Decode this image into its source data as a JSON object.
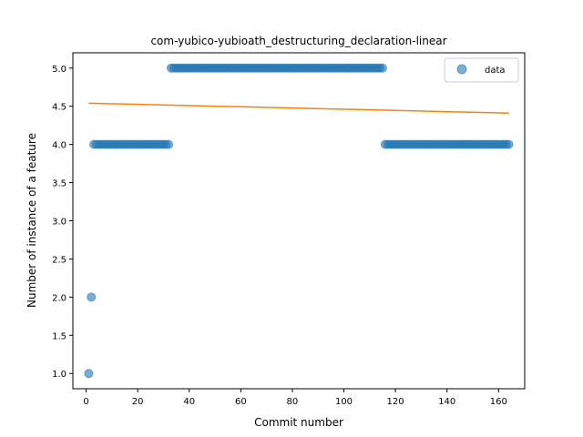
{
  "chart_data": {
    "type": "scatter",
    "title": "com-yubico-yubioath_destructuring_declaration-linear",
    "xlabel": "Commit number",
    "ylabel": "Number of instance of a feature",
    "xlim": [
      -5.15,
      170.15
    ],
    "ylim": [
      0.8,
      5.2
    ],
    "xticks": [
      0,
      20,
      40,
      60,
      80,
      100,
      120,
      140,
      160
    ],
    "yticks": [
      1.0,
      1.5,
      2.0,
      2.5,
      3.0,
      3.5,
      4.0,
      4.5,
      5.0
    ],
    "ytick_labels": [
      "1.0",
      "1.5",
      "2.0",
      "2.5",
      "3.0",
      "3.5",
      "4.0",
      "4.5",
      "5.0"
    ],
    "grid": false,
    "legend": {
      "position": "top-right",
      "entries": [
        "data"
      ]
    },
    "series": [
      {
        "name": "data",
        "kind": "scatter",
        "color": "#1f77b4",
        "alpha": 0.6,
        "segments": [
          {
            "x_start": 1,
            "x_end": 1,
            "y": 1
          },
          {
            "x_start": 2,
            "x_end": 2,
            "y": 2
          },
          {
            "x_start": 3,
            "x_end": 32,
            "y": 4
          },
          {
            "x_start": 33,
            "x_end": 115,
            "y": 5
          },
          {
            "x_start": 116,
            "x_end": 164,
            "y": 4
          }
        ]
      },
      {
        "kind": "line",
        "color": "#ff7f0e",
        "x": [
          1,
          164
        ],
        "y": [
          4.54,
          4.41
        ]
      }
    ]
  }
}
